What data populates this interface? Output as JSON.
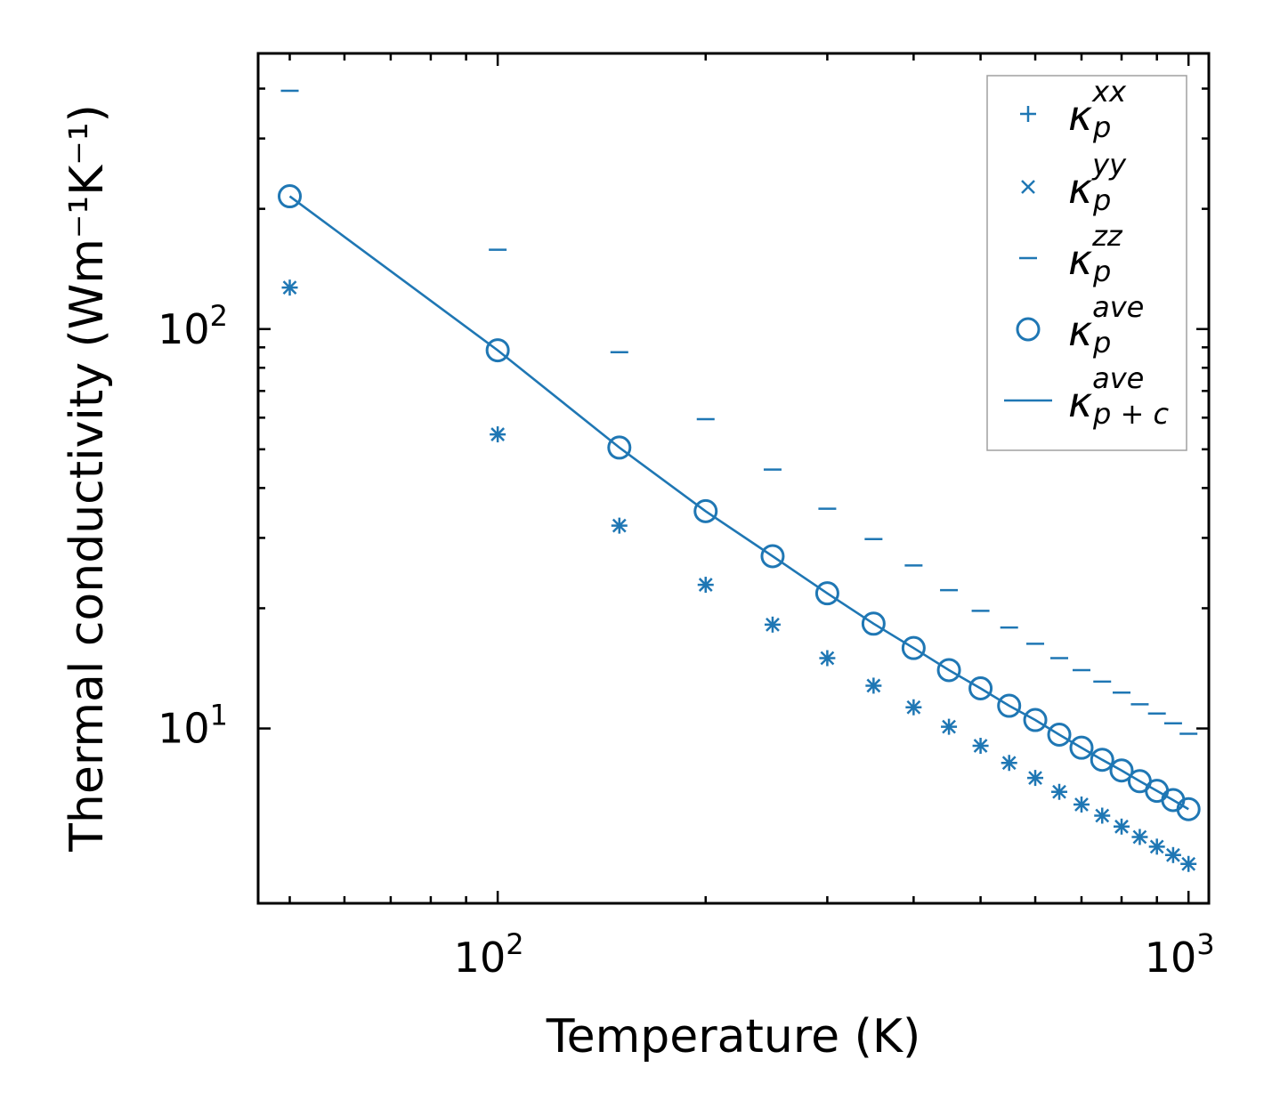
{
  "chart_data": {
    "type": "scatter",
    "xscale": "log",
    "yscale": "log",
    "xlabel": "Temperature (K)",
    "ylabel": "Thermal conductivity (Wm⁻¹K⁻¹)",
    "xlim": [
      45,
      1070
    ],
    "ylim": [
      3.65,
      490
    ],
    "x_major_ticks": [
      {
        "value": 100,
        "base": "10",
        "exp": "2"
      },
      {
        "value": 1000,
        "base": "10",
        "exp": "3"
      }
    ],
    "y_major_ticks": [
      {
        "value": 10,
        "base": "10",
        "exp": "1"
      },
      {
        "value": 100,
        "base": "10",
        "exp": "2"
      }
    ],
    "color": "#1f77b4",
    "legend_position": "top-right",
    "x": [
      50,
      100,
      150,
      200,
      250,
      300,
      350,
      400,
      450,
      500,
      550,
      600,
      650,
      700,
      750,
      800,
      850,
      900,
      950,
      1000
    ],
    "series": [
      {
        "name": "kappa_p^xx",
        "label_base": "κ",
        "label_sub": "p",
        "label_sup": "xx",
        "marker": "plus",
        "line": false,
        "values": [
          127,
          54.5,
          32.2,
          22.9,
          18.2,
          15.0,
          12.8,
          11.3,
          10.1,
          9.05,
          8.2,
          7.52,
          6.94,
          6.45,
          6.05,
          5.68,
          5.35,
          5.06,
          4.82,
          4.58
        ]
      },
      {
        "name": "kappa_p^yy",
        "label_base": "κ",
        "label_sub": "p",
        "label_sup": "yy",
        "marker": "x",
        "line": false,
        "values": [
          127,
          54.5,
          32.2,
          22.9,
          18.2,
          15.0,
          12.8,
          11.3,
          10.1,
          9.05,
          8.2,
          7.52,
          6.94,
          6.45,
          6.05,
          5.68,
          5.35,
          5.06,
          4.82,
          4.58
        ]
      },
      {
        "name": "kappa_p^zz",
        "label_base": "κ",
        "label_sub": "p",
        "label_sup": "zz",
        "marker": "hline",
        "line": false,
        "values": [
          395,
          158,
          87.5,
          59.5,
          44.5,
          35.5,
          29.8,
          25.6,
          22.2,
          19.7,
          17.9,
          16.3,
          15.0,
          14.0,
          13.1,
          12.3,
          11.5,
          10.9,
          10.3,
          9.7
        ]
      },
      {
        "name": "kappa_p^ave",
        "label_base": "κ",
        "label_sub": "p",
        "label_sup": "ave",
        "marker": "circle",
        "line": false,
        "values": [
          215,
          88.5,
          50.5,
          35.0,
          27.0,
          21.8,
          18.3,
          15.9,
          14.0,
          12.6,
          11.4,
          10.5,
          9.65,
          8.95,
          8.35,
          7.85,
          7.38,
          6.98,
          6.62,
          6.28
        ]
      },
      {
        "name": "kappa_p+c^ave",
        "label_base": "κ",
        "label_sub": "p + c",
        "label_sup": "ave",
        "marker": "none",
        "line": true,
        "values": [
          215,
          88.5,
          50.5,
          35.0,
          27.0,
          21.8,
          18.3,
          15.9,
          14.0,
          12.6,
          11.4,
          10.5,
          9.65,
          8.95,
          8.35,
          7.85,
          7.38,
          6.98,
          6.62,
          6.28
        ]
      }
    ]
  }
}
